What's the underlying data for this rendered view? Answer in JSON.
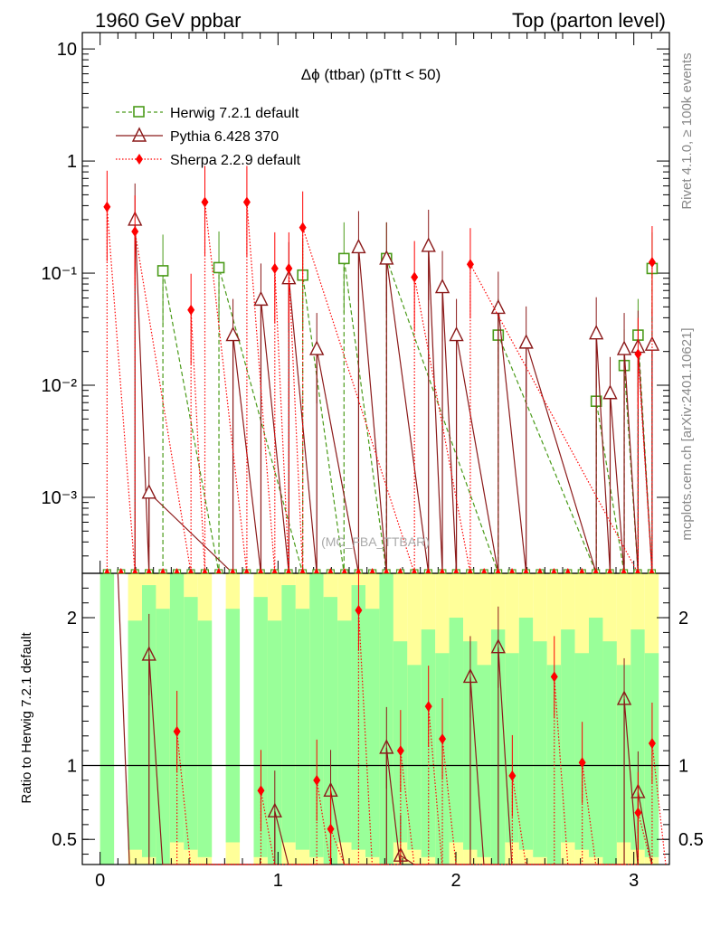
{
  "header": {
    "left": "1960 GeV ppbar",
    "right": "Top (parton level)"
  },
  "side_labels": {
    "rivet": "Rivet 4.1.0, ≥ 100k events",
    "mcplots": "mcplots.cern.ch [arXiv:2401.10621]"
  },
  "watermark": "(MC_FBA_TTBAR)",
  "chart_data": {
    "type": "line",
    "title": "Δϕ (ttbar) (pTtt < 50)",
    "xlim": [
      -0.1,
      3.2
    ],
    "xticks": [
      "0",
      "1",
      "2",
      "3"
    ],
    "main": {
      "yscale": "log",
      "ylim": [
        0.00021,
        14
      ],
      "ytick_labels": [
        "10",
        "1",
        "10⁻¹",
        "10⁻²",
        "10⁻³"
      ],
      "x": [
        0.039,
        0.196,
        0.353,
        0.511,
        0.668,
        0.825,
        0.982,
        1.139,
        1.296,
        1.453,
        1.61,
        1.767,
        1.924,
        2.081,
        2.238,
        2.395,
        2.553,
        2.71,
        2.867,
        3.024
      ],
      "series": [
        {
          "name": "Herwig 7.2.1 default",
          "color": "#4b9b1a",
          "marker": "open-square",
          "dash": "dashed",
          "x": [
            0.353,
            0.668,
            1.139,
            1.371,
            1.61,
            2.238,
            2.789,
            2.946,
            3.024,
            3.103
          ],
          "values": [
            0.105,
            0.112,
            0.096,
            0.135,
            0.135,
            0.028,
            0.0072,
            0.015,
            0.028,
            0.11
          ]
        },
        {
          "name": "Pythia 6.428 370",
          "color": "#8b1a1a",
          "marker": "open-triangle",
          "dash": "solid",
          "x": [
            0.196,
            0.275,
            0.747,
            0.904,
            1.061,
            1.218,
            1.453,
            1.61,
            1.846,
            1.924,
            2.003,
            2.238,
            2.395,
            2.789,
            2.867,
            2.946,
            3.024,
            3.103
          ],
          "values": [
            0.3,
            0.0011,
            0.028,
            0.058,
            0.09,
            0.021,
            0.17,
            0.135,
            0.175,
            0.075,
            0.028,
            0.049,
            0.024,
            0.029,
            0.0085,
            0.021,
            0.022,
            0.023
          ]
        },
        {
          "name": "Sherpa 2.2.9 default",
          "color": "#ff0000",
          "marker": "filled-diamond",
          "dash": "dotted",
          "x": [
            0.039,
            0.196,
            0.511,
            0.589,
            0.825,
            0.982,
            1.061,
            1.139,
            1.767,
            2.081,
            3.024,
            3.103
          ],
          "values": [
            0.39,
            0.235,
            0.047,
            0.43,
            0.43,
            0.11,
            0.11,
            0.255,
            0.092,
            0.12,
            0.019,
            0.125
          ]
        }
      ]
    },
    "ratio": {
      "ylabel": "Ratio to Herwig 7.2.1 default",
      "ylim": [
        0.33,
        2.3
      ],
      "ytick_labels": [
        "0.5",
        "1",
        "2"
      ],
      "reference": 1.0,
      "series": [
        {
          "name": "Pythia 6.428 370",
          "x": [
            0.275,
            0.982,
            1.296,
            1.61,
            1.689,
            2.081,
            2.238,
            2.946,
            3.024
          ],
          "values": [
            1.75,
            0.69,
            0.83,
            1.12,
            0.39,
            1.6,
            1.8,
            1.45,
            0.82
          ]
        },
        {
          "name": "Sherpa 2.2.9 default",
          "x": [
            0.432,
            0.904,
            1.218,
            1.296,
            1.453,
            1.689,
            1.846,
            1.924,
            2.317,
            2.553,
            2.71,
            3.024,
            3.103
          ],
          "values": [
            1.23,
            0.83,
            0.9,
            0.57,
            2.05,
            1.1,
            1.4,
            1.18,
            0.93,
            1.6,
            1.02,
            0.68,
            1.15
          ]
        }
      ]
    }
  }
}
